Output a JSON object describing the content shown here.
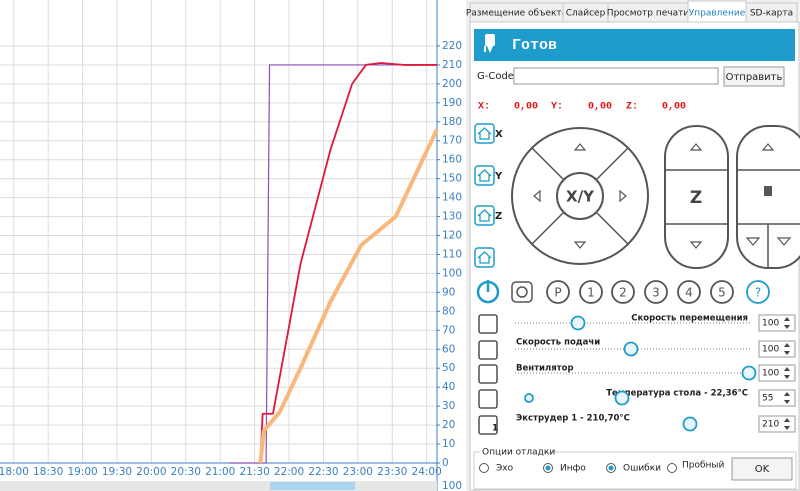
{
  "chart_data": {
    "type": "line",
    "xlim": [
      1068,
      1449
    ],
    "xticks": [
      {
        "value": 1080,
        "label": "18:00"
      },
      {
        "value": 1110,
        "label": "18:30"
      },
      {
        "value": 1140,
        "label": "19:00"
      },
      {
        "value": 1170,
        "label": "19:30"
      },
      {
        "value": 1200,
        "label": "20:00"
      },
      {
        "value": 1230,
        "label": "20:30"
      },
      {
        "value": 1260,
        "label": "21:00"
      },
      {
        "value": 1290,
        "label": "21:30"
      },
      {
        "value": 1320,
        "label": "22:00"
      },
      {
        "value": 1350,
        "label": "22:30"
      },
      {
        "value": 1380,
        "label": "23:00"
      },
      {
        "value": 1410,
        "label": "23:30"
      },
      {
        "value": 1440,
        "label": "24:00"
      }
    ],
    "ylim": [
      0,
      230
    ],
    "yticks": [
      0,
      10,
      20,
      30,
      40,
      50,
      60,
      70,
      80,
      90,
      100,
      110,
      120,
      130,
      140,
      150,
      160,
      170,
      180,
      190,
      200,
      210,
      220
    ],
    "grid": true,
    "series": [
      {
        "color": "#8a4fb8",
        "x": [
          1268,
          1300,
          1303,
          1449
        ],
        "values": [
          0,
          0,
          210,
          210
        ]
      },
      {
        "color": "#e0163c",
        "x": [
          1295,
          1297,
          1306,
          1330,
          1356,
          1375,
          1387,
          1400,
          1420,
          1449
        ],
        "values": [
          0,
          26,
          26,
          105,
          165,
          200,
          210,
          211,
          210,
          210
        ]
      },
      {
        "color": "#f9b87a",
        "x": [
          1295,
          1298,
          1312,
          1330,
          1356,
          1383,
          1413,
          1449
        ],
        "values": [
          0,
          17,
          27,
          50,
          85,
          115,
          130,
          176
        ]
      }
    ],
    "scroll_label": "100"
  },
  "tabs": [
    {
      "label": "Размещение объекта",
      "active": false
    },
    {
      "label": "Слайсер",
      "active": false
    },
    {
      "label": "Просмотр печати",
      "active": false
    },
    {
      "label": "Управление",
      "active": true
    },
    {
      "label": "SD-карта",
      "active": false
    }
  ],
  "status": "Готов",
  "gcode": {
    "label": "G-Code:",
    "button": "Отправить"
  },
  "position": [
    {
      "axis": "X:",
      "value": "0,00"
    },
    {
      "axis": "Y:",
      "value": "0,00"
    },
    {
      "axis": "Z:",
      "value": "0,00"
    }
  ],
  "home_buttons": [
    "X",
    "Y",
    "Z"
  ],
  "jog": {
    "xy": "X/Y",
    "z": "Z"
  },
  "buttons": [
    "P",
    "1",
    "2",
    "3",
    "4",
    "5",
    "?"
  ],
  "sliders": [
    {
      "label": "Скорость перемещения",
      "value": 100
    },
    {
      "label": "Скорость подачи",
      "value": 100
    },
    {
      "label": "Вентилятор",
      "value": 100
    },
    {
      "label": "Температура стола - 22,36°C",
      "value": 55
    },
    {
      "label": "Экструдер 1 - 210,70°C",
      "value": 210
    }
  ],
  "extruder_number": "1",
  "debug": {
    "title": "Опции отладки",
    "options": [
      {
        "label": "Эхо",
        "checked": false
      },
      {
        "label": "Инфо",
        "checked": true
      },
      {
        "label": "Ошибки",
        "checked": true
      },
      {
        "label": "Пробный",
        "checked": false
      }
    ],
    "ok": "OK"
  }
}
